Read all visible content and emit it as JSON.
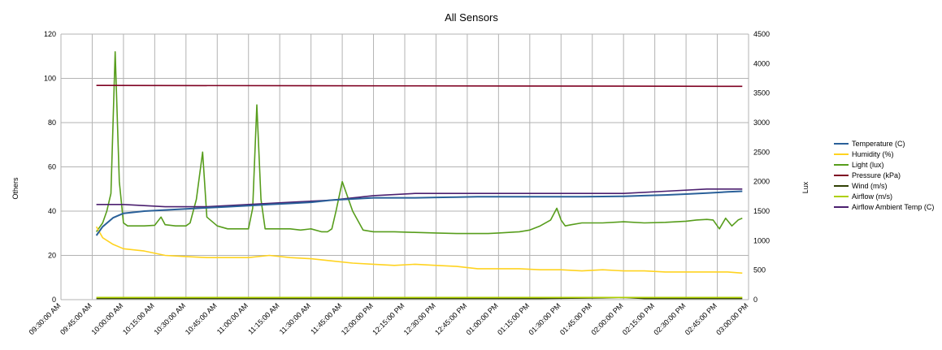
{
  "chart_data": {
    "type": "line",
    "title": "All Sensors",
    "ylabel": "Others",
    "y2label": "Lux",
    "ylim": [
      0,
      120
    ],
    "y2lim": [
      0,
      4500
    ],
    "yticks": [
      0,
      20,
      40,
      60,
      80,
      100,
      120
    ],
    "y2ticks": [
      0,
      500,
      1000,
      1500,
      2000,
      2500,
      3000,
      3500,
      4000,
      4500
    ],
    "xlim_minutes": [
      570,
      900
    ],
    "xticks": [
      "09:30:00 AM",
      "09:45:00 AM",
      "10:00:00 AM",
      "10:15:00 AM",
      "10:30:00 AM",
      "10:45:00 AM",
      "11:00:00 AM",
      "11:15:00 AM",
      "11:30:00 AM",
      "11:45:00 AM",
      "12:00:00 PM",
      "12:15:00 PM",
      "12:30:00 PM",
      "12:45:00 PM",
      "01:00:00 PM",
      "01:15:00 PM",
      "01:30:00 PM",
      "01:45:00 PM",
      "02:00:00 PM",
      "02:15:00 PM",
      "02:30:00 PM",
      "02:45:00 PM",
      "03:00:00 PM"
    ],
    "legend_position": "right",
    "grid": true,
    "series": [
      {
        "name": "Temperature (C)",
        "color": "#2a6099",
        "axis": "left",
        "x": [
          587,
          590,
          595,
          600,
          610,
          620,
          630,
          640,
          650,
          660,
          670,
          680,
          690,
          700,
          710,
          720,
          730,
          740,
          750,
          760,
          770,
          780,
          790,
          800,
          810,
          820,
          830,
          840,
          850,
          860,
          870,
          880,
          890,
          897
        ],
        "y": [
          29,
          33,
          37,
          39,
          40,
          40.5,
          41,
          41.5,
          42,
          42.5,
          43,
          43.5,
          44,
          45,
          45.5,
          46,
          46,
          46,
          46.2,
          46.3,
          46.5,
          46.5,
          46.5,
          46.5,
          46.5,
          46.5,
          46.6,
          46.7,
          47,
          47.3,
          47.7,
          48.2,
          48.7,
          49
        ]
      },
      {
        "name": "Humidity (%)",
        "color": "#ffd320",
        "axis": "left",
        "x": [
          587,
          590,
          595,
          600,
          610,
          620,
          630,
          640,
          650,
          660,
          670,
          680,
          690,
          700,
          710,
          720,
          730,
          740,
          750,
          760,
          770,
          780,
          790,
          800,
          810,
          820,
          830,
          840,
          850,
          860,
          870,
          880,
          890,
          897
        ],
        "y": [
          33,
          28,
          25,
          23,
          22,
          20,
          19.5,
          19,
          19,
          19,
          20,
          19,
          18.5,
          17.5,
          16.5,
          16,
          15.5,
          16,
          15.5,
          15,
          14,
          14,
          14,
          13.5,
          13.5,
          13,
          13.5,
          13,
          13,
          12.5,
          12.5,
          12.5,
          12.5,
          12
        ]
      },
      {
        "name": "Light (lux)",
        "color": "#579d1c",
        "axis": "right",
        "x": [
          587,
          590,
          592,
          594,
          596,
          598,
          600,
          602,
          604,
          606,
          610,
          615,
          618,
          620,
          625,
          630,
          632,
          635,
          638,
          640,
          645,
          650,
          655,
          660,
          662,
          664,
          666,
          668,
          670,
          675,
          680,
          685,
          690,
          695,
          698,
          700,
          702,
          705,
          708,
          710,
          715,
          720,
          730,
          740,
          750,
          760,
          770,
          775,
          780,
          785,
          790,
          795,
          800,
          805,
          808,
          810,
          812,
          815,
          820,
          830,
          840,
          850,
          860,
          870,
          875,
          880,
          883,
          886,
          889,
          892,
          895,
          897
        ],
        "y": [
          1150,
          1300,
          1500,
          1800,
          4200,
          2000,
          1300,
          1250,
          1250,
          1250,
          1250,
          1260,
          1400,
          1270,
          1250,
          1250,
          1300,
          1700,
          2500,
          1400,
          1250,
          1200,
          1200,
          1200,
          1550,
          3300,
          1700,
          1200,
          1200,
          1200,
          1200,
          1180,
          1200,
          1150,
          1150,
          1200,
          1500,
          2000,
          1700,
          1500,
          1180,
          1150,
          1150,
          1140,
          1130,
          1120,
          1120,
          1120,
          1130,
          1140,
          1150,
          1180,
          1250,
          1350,
          1550,
          1350,
          1250,
          1270,
          1300,
          1300,
          1320,
          1300,
          1310,
          1330,
          1350,
          1360,
          1350,
          1200,
          1380,
          1250,
          1350,
          1380
        ]
      },
      {
        "name": "Pressure (kPa)",
        "color": "#7e0021",
        "axis": "left",
        "x": [
          587,
          897
        ],
        "y": [
          96.8,
          96.4
        ]
      },
      {
        "name": "Wind (m/s)",
        "color": "#314004",
        "axis": "left",
        "x": [
          587,
          700,
          800,
          830,
          840,
          850,
          897
        ],
        "y": [
          0.5,
          0.5,
          0.5,
          0.8,
          1.0,
          0.5,
          0.5
        ]
      },
      {
        "name": "Airflow (m/s)",
        "color": "#aecf00",
        "axis": "left",
        "x": [
          587,
          897
        ],
        "y": [
          1.0,
          1.0
        ]
      },
      {
        "name": "Airflow Ambient Temp (C)",
        "color": "#4b1f6f",
        "axis": "left",
        "x": [
          587,
          600,
          620,
          640,
          660,
          680,
          700,
          720,
          740,
          760,
          780,
          800,
          820,
          840,
          860,
          880,
          897
        ],
        "y": [
          43,
          43,
          42,
          42,
          43,
          44,
          45,
          47,
          48,
          48,
          48,
          48,
          48,
          48,
          49,
          50,
          50
        ]
      }
    ]
  }
}
